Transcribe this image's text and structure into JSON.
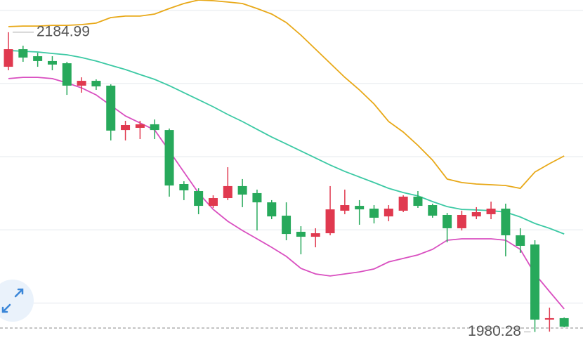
{
  "chart_data": {
    "type": "candlestick",
    "ylim": [
      1970,
      2207
    ],
    "grid_lines": [
      2200,
      2150,
      2100,
      2050,
      2000
    ],
    "grid": true,
    "up_color": "#e0394f",
    "down_color": "#27a95b",
    "open": [
      2161.4,
      2173.4,
      2168.6,
      2165.3,
      2163.8,
      2148.5,
      2151.8,
      2148.5,
      2118.2,
      2119.7,
      2122.1,
      2118.2,
      2081.3,
      2076.5,
      2066.4,
      2071.7,
      2079.9,
      2075.1,
      2068.8,
      2059.7,
      2048.7,
      2045.3,
      2047.7,
      2063.1,
      2066.4,
      2064.5,
      2059.2,
      2063.1,
      2072.7,
      2066.9,
      2060.2,
      2051.1,
      2059.2,
      2060.7,
      2064.5,
      2046.3,
      2040.0,
      1988.7,
      1989.7
    ],
    "high": [
      2184.99,
      2175.8,
      2171.0,
      2168.6,
      2164.8,
      2154.2,
      2152.8,
      2149.4,
      2124.5,
      2124.5,
      2125.4,
      2119.2,
      2083.2,
      2078.4,
      2073.6,
      2092.8,
      2084.7,
      2077.5,
      2070.3,
      2068.8,
      2052.5,
      2051.1,
      2079.9,
      2077.5,
      2070.3,
      2066.9,
      2066.9,
      2073.6,
      2076.5,
      2067.9,
      2061.6,
      2063.1,
      2065.5,
      2069.3,
      2067.9,
      2051.1,
      2042.9,
      1996.9,
      1990.2
    ],
    "low": [
      2159.0,
      2164.8,
      2161.4,
      2159.0,
      2142.2,
      2143.7,
      2145.6,
      2111.1,
      2111.1,
      2112.0,
      2112.0,
      2072.7,
      2070.3,
      2060.7,
      2065.0,
      2070.3,
      2065.5,
      2049.6,
      2057.3,
      2042.9,
      2033.3,
      2038.1,
      2046.3,
      2060.7,
      2053.5,
      2054.4,
      2055.9,
      2062.1,
      2065.0,
      2058.3,
      2041.5,
      2049.6,
      2057.3,
      2057.3,
      2031.9,
      2034.3,
      1980.28,
      1980.5,
      1983.4
    ],
    "close": [
      2173.4,
      2167.7,
      2165.3,
      2162.9,
      2148.5,
      2151.8,
      2148.0,
      2117.8,
      2121.6,
      2122.1,
      2118.2,
      2080.3,
      2077.0,
      2066.4,
      2071.7,
      2079.9,
      2074.1,
      2068.8,
      2059.2,
      2047.2,
      2045.3,
      2047.7,
      2064.0,
      2066.9,
      2064.0,
      2058.3,
      2064.5,
      2072.7,
      2066.4,
      2059.7,
      2051.1,
      2060.2,
      2062.1,
      2064.5,
      2046.3,
      2039.1,
      1988.7,
      1989.7,
      1983.9
    ],
    "bands": [
      {
        "color": "#e8a817",
        "values": [
          2188.8,
          2189.2,
          2189.2,
          2189.7,
          2189.7,
          2190.2,
          2191.2,
          2195.0,
          2196.0,
          2196.0,
          2197.4,
          2201.2,
          2204.6,
          2207.0,
          2206.5,
          2205.6,
          2204.6,
          2201.2,
          2197.4,
          2191.6,
          2183.0,
          2173.4,
          2163.8,
          2154.2,
          2145.6,
          2136.0,
          2124.0,
          2116.8,
          2107.7,
          2097.6,
          2084.7,
          2082.3,
          2081.3,
          2080.8,
          2080.3,
          2078.4,
          2089.5,
          2095.2,
          2100.5
        ]
      },
      {
        "color": "#3cc9a4",
        "values": [
          2172.5,
          2172.0,
          2171.5,
          2170.5,
          2169.6,
          2167.7,
          2165.3,
          2162.4,
          2159.5,
          2156.1,
          2152.8,
          2148.5,
          2143.7,
          2138.9,
          2134.1,
          2128.8,
          2124.0,
          2118.7,
          2113.4,
          2108.7,
          2103.9,
          2099.1,
          2094.3,
          2089.9,
          2086.1,
          2082.3,
          2078.4,
          2075.5,
          2073.2,
          2069.3,
          2065.9,
          2064.0,
          2063.6,
          2063.1,
          2062.1,
          2058.8,
          2054.4,
          2051.1,
          2047.2
        ]
      },
      {
        "color": "#d94fc0",
        "values": [
          2153.3,
          2154.2,
          2154.2,
          2153.3,
          2150.4,
          2147.0,
          2142.2,
          2135.0,
          2127.8,
          2123.0,
          2118.2,
          2103.9,
          2089.5,
          2075.1,
          2064.0,
          2055.9,
          2049.6,
          2043.9,
          2038.1,
          2031.9,
          2023.7,
          2019.9,
          2018.5,
          2019.9,
          2021.3,
          2023.3,
          2028.1,
          2030.5,
          2032.9,
          2036.7,
          2042.9,
          2043.9,
          2043.9,
          2043.9,
          2042.9,
          2036.7,
          2019.9,
          2007.9,
          1996.0
        ]
      }
    ],
    "max_marker": 2184.99,
    "min_marker": 1980.28
  }
}
